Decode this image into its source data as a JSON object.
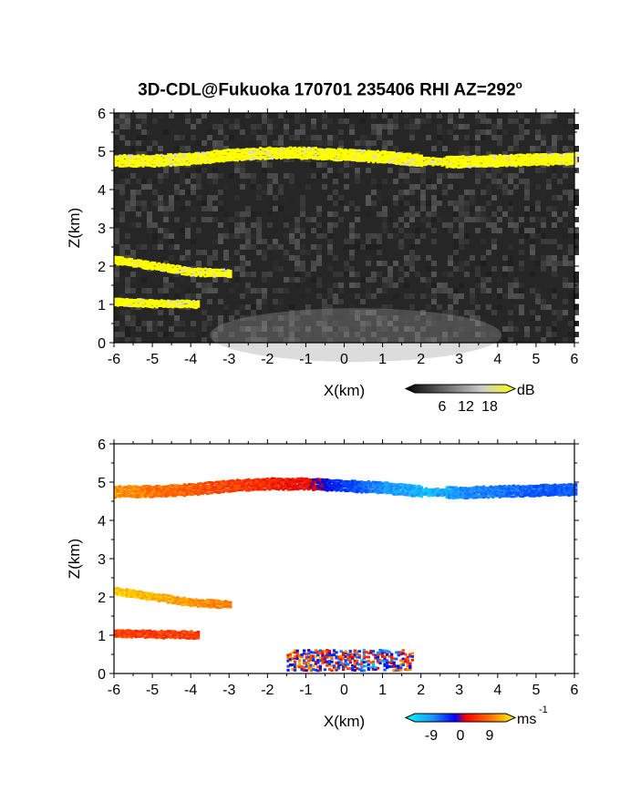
{
  "title": "3D-CDL@Fukuoka 170701 235406 RHI AZ=292",
  "title_degree": "o",
  "colors": {
    "echo_high": "#ffff00",
    "background_noise": "#2a2a2a",
    "colorbar_vel_neg": "#1e90ff",
    "colorbar_vel_pos": "#ff3000"
  },
  "chart_data": [
    {
      "type": "heatmap",
      "panel": "reflectivity",
      "xlabel": "X(km)",
      "ylabel": "Z(km)",
      "xlim": [
        -6,
        6
      ],
      "ylim": [
        0,
        6
      ],
      "x_ticks": [
        "-6",
        "-5",
        "-4",
        "-3",
        "-2",
        "-1",
        "0",
        "1",
        "2",
        "3",
        "4",
        "5",
        "6"
      ],
      "y_ticks": [
        "0",
        "1",
        "2",
        "3",
        "4",
        "5",
        "6"
      ],
      "colorbar": {
        "unit": "dB",
        "ticks": [
          "6",
          "12",
          "18"
        ]
      },
      "layers": [
        {
          "label": "upper layer",
          "x_range": [
            -6,
            6
          ],
          "z_center": [
            4.75,
            4.75,
            4.8,
            4.9,
            4.95,
            4.95,
            4.9,
            4.85,
            4.75,
            4.72,
            4.75,
            4.78,
            4.8
          ]
        },
        {
          "label": "middle layer",
          "x_range": [
            -6,
            -3
          ],
          "z_center": [
            2.15,
            2.0,
            1.85,
            1.8
          ]
        },
        {
          "label": "lower layer",
          "x_range": [
            -6,
            -3.8
          ],
          "z_center": [
            1.05,
            1.02,
            1.0
          ]
        }
      ]
    },
    {
      "type": "heatmap",
      "panel": "doppler velocity",
      "xlabel": "X(km)",
      "ylabel": "Z(km)",
      "xlim": [
        -6,
        6
      ],
      "ylim": [
        0,
        6
      ],
      "x_ticks": [
        "-6",
        "-5",
        "-4",
        "-3",
        "-2",
        "-1",
        "0",
        "1",
        "2",
        "3",
        "4",
        "5",
        "6"
      ],
      "y_ticks": [
        "0",
        "1",
        "2",
        "3",
        "4",
        "5",
        "6"
      ],
      "colorbar": {
        "unit": "ms",
        "unit_exponent": "-1",
        "ticks": [
          "-9",
          "0",
          "9"
        ]
      },
      "layers": [
        {
          "label": "upper layer",
          "x_range": [
            -6,
            6
          ],
          "velocity_by_x": [
            6,
            5,
            4,
            3,
            2,
            1,
            -3,
            -6,
            -7,
            -6,
            -5,
            -4,
            -4
          ]
        },
        {
          "label": "middle layer",
          "x_range": [
            -6,
            -3
          ],
          "velocity_by_x": [
            8,
            7,
            6,
            5
          ]
        },
        {
          "label": "lower layer",
          "x_range": [
            -6,
            -3.8
          ],
          "velocity_by_x": [
            3,
            3,
            3
          ]
        },
        {
          "label": "near-surface",
          "x_range": [
            -1.5,
            1.8
          ],
          "velocity_by_x": [
            2,
            1,
            -2,
            1
          ]
        }
      ]
    }
  ]
}
